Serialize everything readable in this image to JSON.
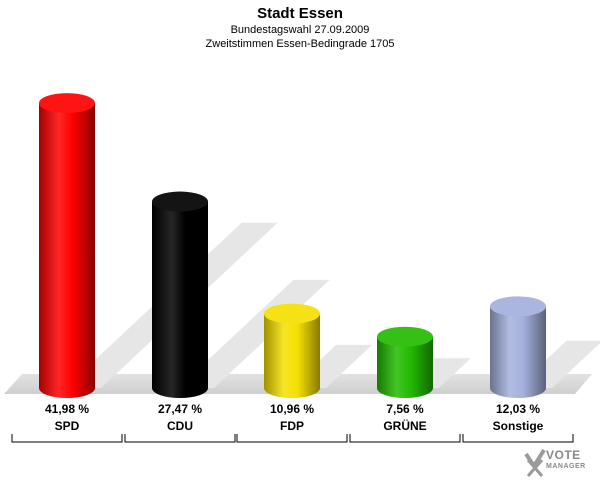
{
  "header": {
    "title": "Stadt Essen",
    "subtitle1": "Bundestagswahl 27.09.2009",
    "subtitle2": "Zweitstimmen Essen-Bedingrade 1705"
  },
  "chart_data": {
    "type": "bar",
    "categories": [
      "SPD",
      "CDU",
      "FDP",
      "GRÜNE",
      "Sonstige"
    ],
    "values": [
      41.98,
      27.47,
      10.96,
      7.56,
      12.03
    ],
    "value_labels": [
      "41,98 %",
      "27,47 %",
      "10,96 %",
      "7,56 %",
      "12,03 %"
    ],
    "colors": [
      "#ff0000",
      "#000000",
      "#f5e000",
      "#22bb00",
      "#a3b0dc"
    ],
    "ylim": [
      0,
      45
    ],
    "grid": false,
    "legend": "none"
  },
  "logo": {
    "line1": "VOTE",
    "line2": "MANAGER",
    "icon": "checkmark-x-icon"
  }
}
